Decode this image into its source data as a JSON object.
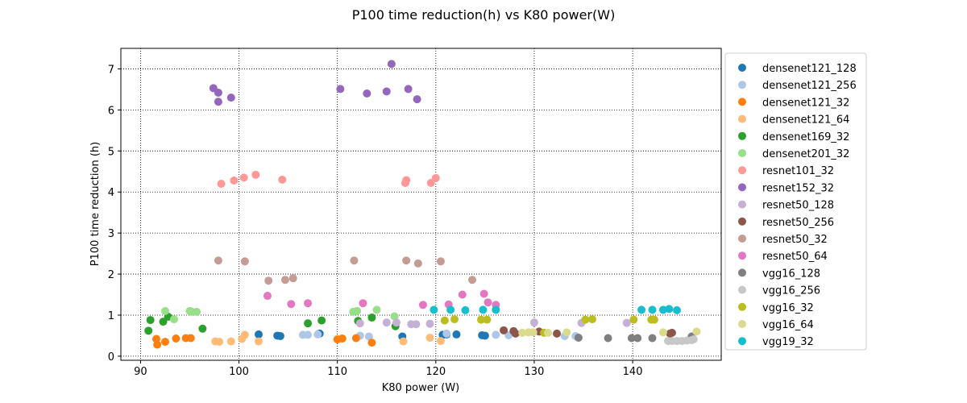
{
  "chart_data": {
    "type": "scatter",
    "title": "P100 time reduction(h) vs K80 power(W)",
    "xlabel": "K80 power (W)",
    "ylabel": "P100 time reduction (h)",
    "xlim": [
      88,
      149
    ],
    "ylim": [
      -0.1,
      7.5
    ],
    "xticks": [
      90,
      100,
      110,
      120,
      130,
      140
    ],
    "yticks": [
      0,
      1,
      2,
      3,
      4,
      5,
      6,
      7
    ],
    "grid": true,
    "legend_position": "right",
    "series": [
      {
        "name": "densenet121_128",
        "color": "#1f77b4",
        "x": [
          102.0,
          103.9,
          104.2,
          108.2,
          116.6,
          120.7,
          121.1,
          122.1,
          124.7,
          125.0
        ],
        "y": [
          0.53,
          0.5,
          0.49,
          0.55,
          0.48,
          0.52,
          0.53,
          0.53,
          0.51,
          0.5
        ]
      },
      {
        "name": "densenet121_256",
        "color": "#aec7e8",
        "x": [
          106.5,
          107.0,
          108.0,
          112.3,
          113.2,
          121.1,
          126.1,
          127.4,
          133.1,
          134.2
        ],
        "y": [
          0.52,
          0.52,
          0.53,
          0.5,
          0.48,
          0.55,
          0.52,
          0.51,
          0.49,
          0.49
        ]
      },
      {
        "name": "densenet121_32",
        "color": "#ff7f0e",
        "x": [
          91.6,
          91.7,
          92.5,
          93.6,
          94.6,
          95.1,
          110.0,
          110.5,
          111.9,
          113.5
        ],
        "y": [
          0.42,
          0.28,
          0.35,
          0.43,
          0.44,
          0.44,
          0.41,
          0.43,
          0.44,
          0.33
        ]
      },
      {
        "name": "densenet121_64",
        "color": "#ffbb78",
        "x": [
          97.6,
          98.0,
          99.2,
          100.3,
          100.6,
          102.0,
          116.7,
          119.4,
          120.5
        ],
        "y": [
          0.36,
          0.35,
          0.36,
          0.42,
          0.52,
          0.36,
          0.36,
          0.45,
          0.37
        ]
      },
      {
        "name": "densenet169_32",
        "color": "#2ca02c",
        "x": [
          90.8,
          91.0,
          92.3,
          92.8,
          96.3,
          107.0,
          108.4,
          112.1,
          113.5,
          115.9
        ],
        "y": [
          0.62,
          0.88,
          0.84,
          0.96,
          0.67,
          0.8,
          0.87,
          0.86,
          0.94,
          0.73
        ]
      },
      {
        "name": "densenet201_32",
        "color": "#98df8a",
        "x": [
          92.5,
          93.4,
          95.0,
          95.2,
          95.7,
          111.6,
          112.0,
          114.0,
          115.8
        ],
        "y": [
          1.1,
          0.9,
          1.1,
          1.08,
          1.08,
          1.08,
          1.1,
          1.13,
          0.97
        ]
      },
      {
        "name": "resnet101_32",
        "color": "#ff9896",
        "x": [
          98.2,
          99.5,
          100.5,
          101.7,
          104.4,
          116.9,
          117.0,
          119.5,
          120.0
        ],
        "y": [
          4.2,
          4.28,
          4.35,
          4.42,
          4.3,
          4.22,
          4.29,
          4.22,
          4.34
        ]
      },
      {
        "name": "resnet152_32",
        "color": "#9467bd",
        "x": [
          97.4,
          97.9,
          97.9,
          99.2,
          110.3,
          113.0,
          115.0,
          115.5,
          117.2,
          118.1
        ],
        "y": [
          6.53,
          6.42,
          6.2,
          6.3,
          6.51,
          6.4,
          6.45,
          7.12,
          6.51,
          6.26
        ]
      },
      {
        "name": "resnet50_128",
        "color": "#c5b0d5",
        "x": [
          112.3,
          115.0,
          116.0,
          117.5,
          118.0,
          119.4,
          130.0,
          134.8,
          139.4
        ],
        "y": [
          0.8,
          0.82,
          0.82,
          0.78,
          0.78,
          0.79,
          0.82,
          0.81,
          0.81
        ]
      },
      {
        "name": "resnet50_256",
        "color": "#8c564b",
        "x": [
          126.9,
          127.9,
          128.1,
          130.5,
          132.3,
          143.8,
          144.0
        ],
        "y": [
          0.63,
          0.61,
          0.55,
          0.6,
          0.55,
          0.55,
          0.57
        ]
      },
      {
        "name": "resnet50_32",
        "color": "#c49c94",
        "x": [
          97.9,
          100.6,
          103.0,
          104.7,
          105.5,
          111.7,
          117.0,
          118.2,
          120.5,
          123.7
        ],
        "y": [
          2.33,
          2.31,
          1.84,
          1.86,
          1.9,
          2.33,
          2.33,
          2.26,
          2.31,
          1.86
        ]
      },
      {
        "name": "resnet50_64",
        "color": "#e377c2",
        "x": [
          102.9,
          105.3,
          107.0,
          112.6,
          118.7,
          121.3,
          122.7,
          124.9,
          125.3,
          126.1
        ],
        "y": [
          1.47,
          1.27,
          1.29,
          1.29,
          1.25,
          1.26,
          1.5,
          1.52,
          1.31,
          1.25
        ]
      },
      {
        "name": "vgg16_128",
        "color": "#7f7f7f",
        "x": [
          134.5,
          137.5,
          139.9,
          140.5,
          142.0,
          146.0
        ],
        "y": [
          0.45,
          0.44,
          0.44,
          0.44,
          0.44,
          0.48
        ]
      },
      {
        "name": "vgg16_256",
        "color": "#c7c7c7",
        "x": [
          143.6,
          144.0,
          144.5,
          145.0,
          145.5,
          146.0,
          146.2
        ],
        "y": [
          0.37,
          0.37,
          0.37,
          0.37,
          0.38,
          0.39,
          0.41
        ]
      },
      {
        "name": "vgg16_32",
        "color": "#bcbd22",
        "x": [
          120.9,
          121.9,
          124.6,
          125.2,
          131.0,
          135.2,
          135.9,
          140.1,
          141.9,
          142.2
        ],
        "y": [
          0.87,
          0.9,
          0.89,
          0.89,
          0.57,
          0.89,
          0.9,
          0.89,
          0.89,
          0.89
        ]
      },
      {
        "name": "vgg16_64",
        "color": "#dbdb8d",
        "x": [
          128.8,
          129.4,
          129.9,
          131.4,
          133.3,
          143.1,
          146.5
        ],
        "y": [
          0.57,
          0.58,
          0.58,
          0.57,
          0.58,
          0.58,
          0.6
        ]
      },
      {
        "name": "vgg19_32",
        "color": "#17becf",
        "x": [
          119.8,
          121.5,
          123.0,
          124.8,
          126.1,
          140.9,
          142.0,
          143.1,
          143.7,
          144.5
        ],
        "y": [
          1.13,
          1.13,
          1.12,
          1.13,
          1.13,
          1.13,
          1.13,
          1.13,
          1.15,
          1.12
        ]
      }
    ]
  }
}
